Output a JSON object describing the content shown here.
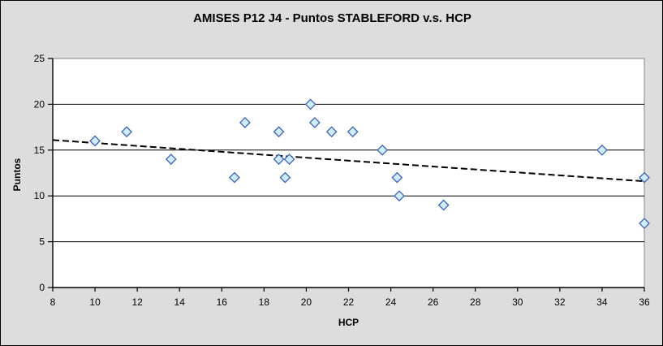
{
  "window": {
    "background_color": "#dddddd",
    "border_color": "#000000",
    "plot_background_color": "#ffffff",
    "plot_border_color": "#848484",
    "gridline_color": "#000000",
    "axis_color": "#000000"
  },
  "chart_data": {
    "type": "scatter",
    "title": "AMISES P12 J4 - Puntos STABLEFORD v.s. HCP",
    "xlabel": "HCP",
    "ylabel": "Puntos",
    "xlim": [
      8,
      36
    ],
    "ylim": [
      0,
      25
    ],
    "x_ticks": [
      8,
      10,
      12,
      14,
      16,
      18,
      20,
      22,
      24,
      26,
      28,
      30,
      32,
      34,
      36
    ],
    "y_ticks": [
      0,
      5,
      10,
      15,
      20,
      25
    ],
    "grid": "horizontal-only",
    "legend": "none",
    "points": [
      [
        10,
        16
      ],
      [
        11.5,
        17
      ],
      [
        13.6,
        14
      ],
      [
        16.6,
        12
      ],
      [
        17.1,
        18
      ],
      [
        18.7,
        17
      ],
      [
        18.7,
        14
      ],
      [
        19.2,
        14
      ],
      [
        19,
        12
      ],
      [
        20.2,
        20
      ],
      [
        20.4,
        18
      ],
      [
        21.2,
        17
      ],
      [
        22.2,
        17
      ],
      [
        23.6,
        15
      ],
      [
        24.3,
        12
      ],
      [
        24.4,
        10
      ],
      [
        26.5,
        9
      ],
      [
        34,
        15
      ],
      [
        36,
        12
      ],
      [
        36,
        7
      ]
    ],
    "marker": {
      "shape": "diamond",
      "fill": "#cdedfb",
      "stroke": "#4262ad"
    },
    "trendline": {
      "style": "dashed",
      "color": "#000000",
      "x": [
        8,
        36
      ],
      "y": [
        16.1,
        11.6
      ]
    }
  }
}
